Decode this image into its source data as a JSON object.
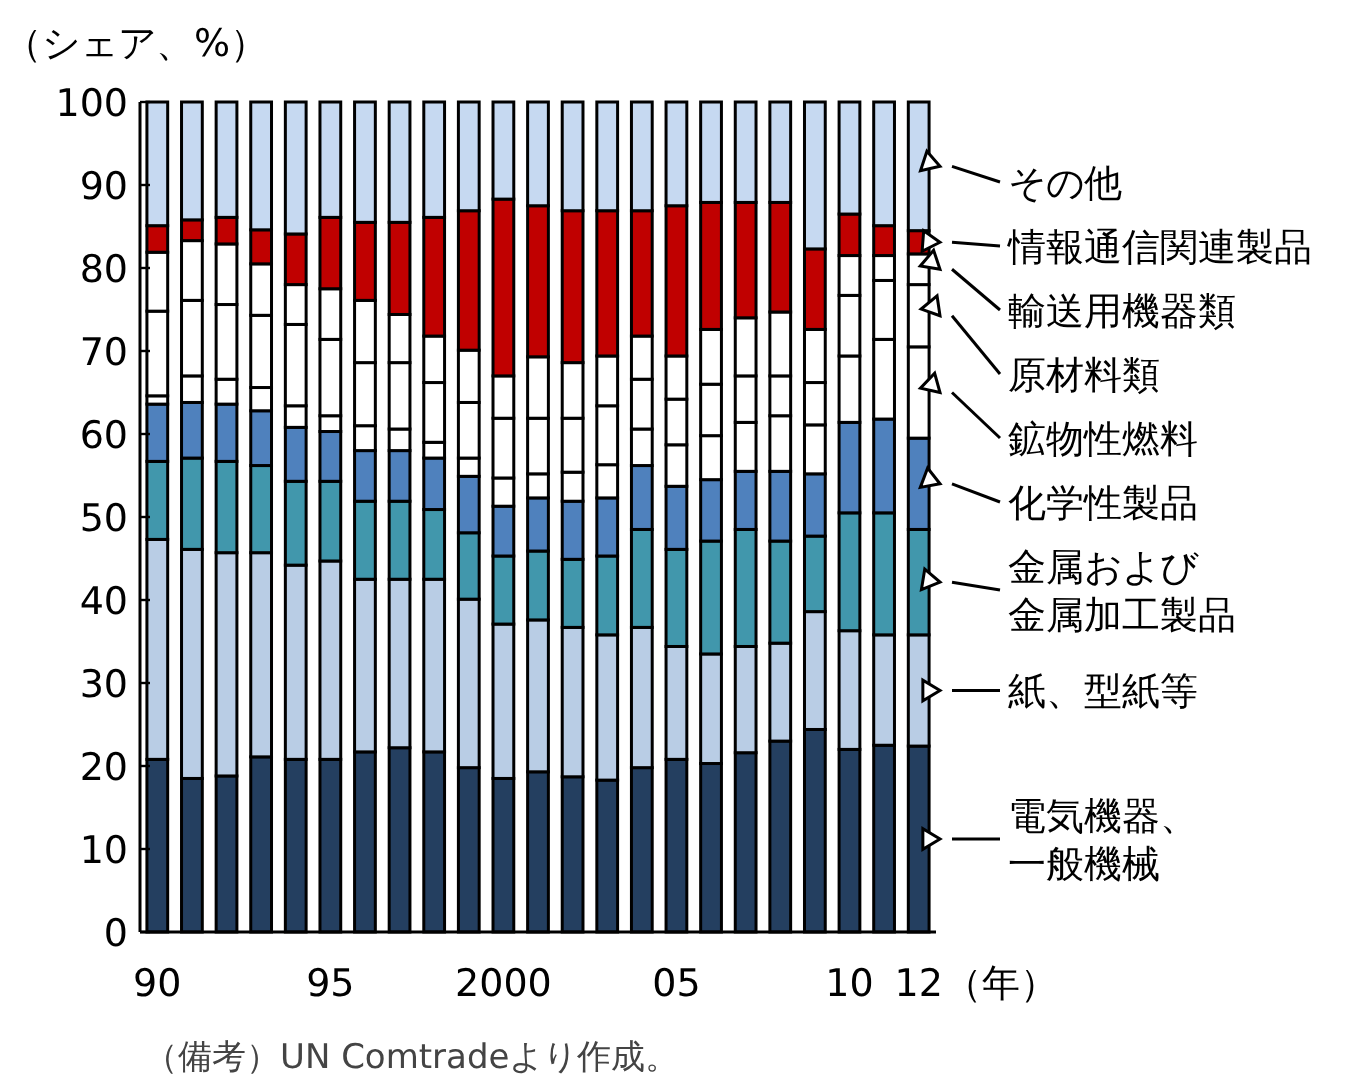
{
  "chart_data": {
    "type": "bar",
    "stacked": true,
    "ylabel": "（シェア、%）",
    "xlabel": "（年）",
    "categories": [
      "90",
      null,
      null,
      null,
      null,
      "95",
      null,
      null,
      null,
      null,
      "2000",
      null,
      null,
      null,
      null,
      "05",
      null,
      null,
      null,
      null,
      "10",
      null,
      "12"
    ],
    "ylim": [
      0,
      100
    ],
    "yticks": [
      0,
      10,
      20,
      30,
      40,
      50,
      60,
      70,
      80,
      90,
      100
    ],
    "grid": false,
    "legend": "right",
    "annotations": [
      "（備考）UN Comtradeより作成。"
    ],
    "series": [
      {
        "name": "電気機器、一般機械",
        "color": "#243f60",
        "values": [
          20.8,
          18.5,
          18.8,
          21.1,
          20.8,
          20.8,
          21.7,
          22.2,
          21.7,
          19.8,
          18.5,
          19.3,
          18.7,
          18.3,
          19.8,
          20.8,
          20.3,
          21.6,
          23.0,
          24.4,
          22.0,
          22.5,
          22.4
        ]
      },
      {
        "name": "紙、型紙等",
        "color": "#b9cde5",
        "values": [
          26.5,
          27.6,
          26.9,
          24.6,
          23.4,
          23.9,
          20.8,
          20.3,
          20.8,
          20.3,
          18.6,
          18.3,
          18.0,
          17.5,
          16.9,
          13.6,
          13.2,
          12.8,
          11.8,
          14.2,
          14.3,
          13.3,
          13.4
        ]
      },
      {
        "name": "金属および金属加工製品",
        "color": "#4197ac",
        "values": [
          9.4,
          11.0,
          11.0,
          10.5,
          10.1,
          9.6,
          9.4,
          9.4,
          8.4,
          8.0,
          8.2,
          8.3,
          8.2,
          9.5,
          11.8,
          11.7,
          13.6,
          14.1,
          12.3,
          9.1,
          14.2,
          14.7,
          12.7
        ]
      },
      {
        "name": "化学性製品",
        "color": "#4f81bd",
        "values": [
          6.9,
          6.7,
          6.9,
          6.6,
          6.5,
          6.0,
          6.1,
          6.1,
          6.2,
          6.8,
          6.0,
          6.4,
          7.0,
          7.0,
          7.7,
          7.6,
          7.4,
          7.0,
          8.4,
          7.5,
          10.9,
          11.3,
          11.0
        ]
      },
      {
        "name": "鉱物性燃料",
        "color": "#ffffff",
        "values": [
          1.0,
          3.2,
          3.0,
          2.8,
          2.6,
          1.9,
          3.0,
          2.6,
          1.9,
          2.2,
          3.4,
          2.9,
          3.5,
          4.0,
          4.4,
          5.0,
          5.3,
          5.9,
          6.7,
          5.9,
          8.0,
          9.6,
          11.0
        ]
      },
      {
        "name": "原材料類",
        "color": "#ffffff",
        "values": [
          10.2,
          9.1,
          9.0,
          8.7,
          9.8,
          9.2,
          7.6,
          8.0,
          7.2,
          6.7,
          7.2,
          6.7,
          6.5,
          7.1,
          6.0,
          5.5,
          6.2,
          5.6,
          4.8,
          5.1,
          7.3,
          7.1,
          7.5
        ]
      },
      {
        "name": "輸送用機器類",
        "color": "#ffffff",
        "values": [
          7.1,
          7.2,
          7.3,
          6.2,
          4.8,
          6.1,
          7.5,
          5.8,
          5.6,
          6.3,
          5.1,
          7.4,
          6.7,
          6.0,
          5.2,
          5.2,
          6.6,
          7.0,
          7.7,
          6.4,
          4.8,
          3.0,
          3.7
        ]
      },
      {
        "name": "情報通信関連製品",
        "color": "#c00000",
        "values": [
          3.2,
          2.5,
          3.2,
          4.1,
          6.1,
          8.6,
          9.4,
          11.1,
          14.3,
          16.8,
          21.3,
          18.2,
          18.3,
          17.5,
          15.1,
          18.1,
          15.3,
          13.9,
          13.2,
          9.7,
          5.0,
          3.6,
          2.8
        ]
      },
      {
        "name": "その他",
        "color": "#c6d9f1",
        "values": [
          14.9,
          14.2,
          13.9,
          15.4,
          15.9,
          13.9,
          14.5,
          14.5,
          13.9,
          13.1,
          11.7,
          12.5,
          13.1,
          13.1,
          13.1,
          12.5,
          12.1,
          12.1,
          12.1,
          17.7,
          13.5,
          14.9,
          15.5
        ]
      }
    ]
  }
}
